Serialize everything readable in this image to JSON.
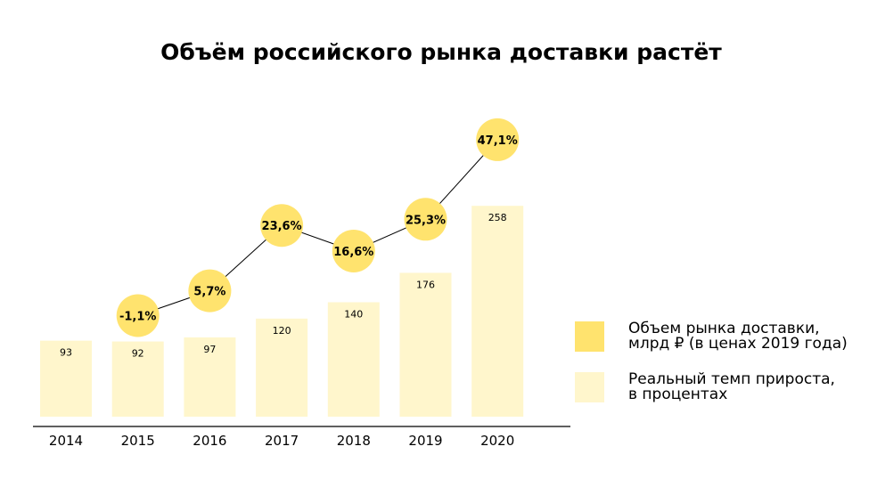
{
  "chart_data": {
    "type": "bar",
    "title": "Объём российского рынка доставки растёт",
    "categories": [
      "2014",
      "2015",
      "2016",
      "2017",
      "2018",
      "2019",
      "2020"
    ],
    "series": [
      {
        "name": "Объем рынка доставки, млрд ₽ (в ценах 2019 года)",
        "kind": "bar",
        "values": [
          93,
          92,
          97,
          120,
          140,
          176,
          258
        ],
        "labels": [
          "93",
          "92",
          "97",
          "120",
          "140",
          "176",
          "258"
        ]
      },
      {
        "name": "Реальный темп прироста, в процентах",
        "kind": "line-with-circles",
        "values": [
          null,
          -1.1,
          5.7,
          23.6,
          16.6,
          25.3,
          47.1
        ],
        "labels": [
          "",
          "-1,1%",
          "5,7%",
          "23,6%",
          "16,6%",
          "25,3%",
          "47,1%"
        ]
      }
    ],
    "legend": {
      "placement": "right",
      "items": [
        {
          "label": "Объем рынка доставки,\nмлрд ₽ (в ценах 2019 года)",
          "color": "#ffe36e"
        },
        {
          "label": "Реальный темп прироста,\nв процентах",
          "color": "#fff6cc"
        }
      ]
    },
    "colors": {
      "bar": "#fff6cc",
      "circle": "#ffe36e",
      "line": "#000000",
      "axis": "#000000"
    },
    "grid": false
  }
}
